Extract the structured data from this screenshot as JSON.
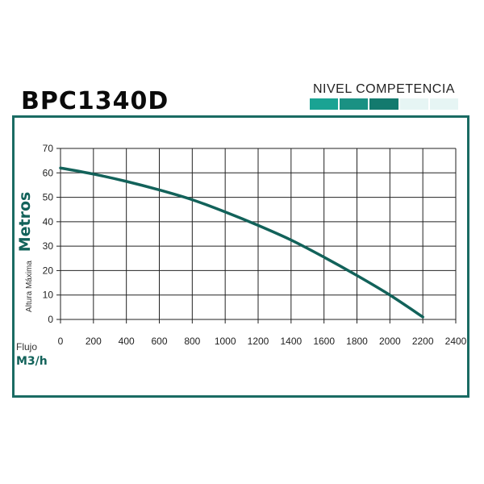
{
  "header": {
    "model": "BPC1340D",
    "level_label": "NIVEL COMPETENCIA",
    "level_segments": [
      {
        "color": "#1aa393",
        "active": true
      },
      {
        "color": "#1a9183",
        "active": true
      },
      {
        "color": "#137a6e",
        "active": true
      },
      {
        "color": "#e6f5f4",
        "active": false
      },
      {
        "color": "#e6f5f4",
        "active": false
      }
    ]
  },
  "colors": {
    "curve": "#12625a",
    "frame": "#1a6b63",
    "grid": "#222222",
    "accent_text": "#12625a"
  },
  "chart_data": {
    "type": "line",
    "title": "BPC1340D",
    "xlabel": "Flujo",
    "xunit": "M3/h",
    "ylabel_small": "Altura Máxima",
    "ylabel_big": "Metros",
    "xlim": [
      0,
      2400
    ],
    "ylim": [
      0,
      70
    ],
    "xticks": [
      0,
      200,
      400,
      600,
      800,
      1000,
      1200,
      1400,
      1600,
      1800,
      2000,
      2200,
      2400
    ],
    "yticks": [
      0,
      10,
      20,
      30,
      40,
      50,
      60,
      70
    ],
    "grid": true,
    "series": [
      {
        "x": [
          0,
          200,
          400,
          600,
          800,
          1000,
          1200,
          1400,
          1600,
          1800,
          2000,
          2200
        ],
        "y": [
          62,
          59.5,
          56.5,
          53,
          49,
          44,
          38.5,
          32.5,
          25.5,
          18,
          10,
          1
        ]
      }
    ]
  }
}
